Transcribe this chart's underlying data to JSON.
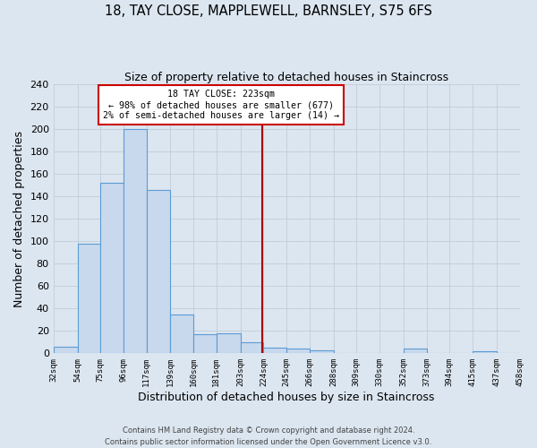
{
  "title": "18, TAY CLOSE, MAPPLEWELL, BARNSLEY, S75 6FS",
  "subtitle": "Size of property relative to detached houses in Staincross",
  "xlabel": "Distribution of detached houses by size in Staincross",
  "ylabel": "Number of detached properties",
  "footer_line1": "Contains HM Land Registry data © Crown copyright and database right 2024.",
  "footer_line2": "Contains public sector information licensed under the Open Government Licence v3.0.",
  "bin_edges": [
    32,
    54,
    75,
    96,
    117,
    139,
    160,
    181,
    203,
    224,
    245,
    266,
    288,
    309,
    330,
    352,
    373,
    394,
    415,
    437,
    458
  ],
  "bin_labels": [
    "32sqm",
    "54sqm",
    "75sqm",
    "96sqm",
    "117sqm",
    "139sqm",
    "160sqm",
    "181sqm",
    "203sqm",
    "224sqm",
    "245sqm",
    "266sqm",
    "288sqm",
    "309sqm",
    "330sqm",
    "352sqm",
    "373sqm",
    "394sqm",
    "415sqm",
    "437sqm",
    "458sqm"
  ],
  "counts": [
    6,
    98,
    152,
    200,
    146,
    35,
    17,
    18,
    10,
    5,
    4,
    3,
    0,
    0,
    0,
    4,
    0,
    0,
    2,
    0
  ],
  "bar_color": "#c8d9ed",
  "bar_edge_color": "#5b9bd5",
  "property_line_x": 223,
  "property_line_color": "#aa0000",
  "annotation_title": "18 TAY CLOSE: 223sqm",
  "annotation_line1": "← 98% of detached houses are smaller (677)",
  "annotation_line2": "2% of semi-detached houses are larger (14) →",
  "annotation_box_facecolor": "#ffffff",
  "annotation_box_edgecolor": "#cc0000",
  "ylim": [
    0,
    240
  ],
  "yticks": [
    0,
    20,
    40,
    60,
    80,
    100,
    120,
    140,
    160,
    180,
    200,
    220,
    240
  ],
  "background_color": "#dce6f0",
  "grid_color": "#c0ccd8",
  "plot_bg_color": "#dce6f0"
}
